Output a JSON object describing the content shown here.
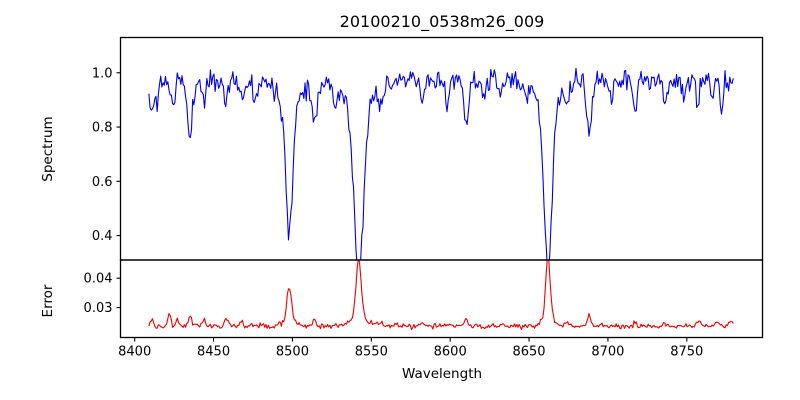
{
  "figure": {
    "title": "20100210_0538m26_009",
    "xlabel": "Wavelength",
    "background": "#ffffff",
    "spine_color": "#000000",
    "tick_color": "#000000"
  },
  "xticks": [
    {
      "v": 8400,
      "label": "8400"
    },
    {
      "v": 8450,
      "label": "8450"
    },
    {
      "v": 8500,
      "label": "8500"
    },
    {
      "v": 8550,
      "label": "8550"
    },
    {
      "v": 8600,
      "label": "8600"
    },
    {
      "v": 8650,
      "label": "8650"
    },
    {
      "v": 8700,
      "label": "8700"
    },
    {
      "v": 8750,
      "label": "8750"
    }
  ],
  "chart_data": [
    {
      "type": "line",
      "name": "spectrum",
      "ylabel": "Spectrum",
      "line_color": "#0000ee",
      "xlim": [
        8391,
        8798
      ],
      "ylim": [
        0.31,
        1.13
      ],
      "yticks": [
        {
          "v": 0.4,
          "label": "0.4"
        },
        {
          "v": 0.6,
          "label": "0.6"
        },
        {
          "v": 0.8,
          "label": "0.8"
        },
        {
          "v": 1.0,
          "label": "1.0"
        }
      ],
      "x_start": 8409,
      "x_end": 8780,
      "dx": 0.75,
      "model": {
        "base": 0.97,
        "noise_sigma": 0.019,
        "seed": 11,
        "features": [
          {
            "c": 8410.5,
            "v": 0.85,
            "w": 1.2
          },
          {
            "c": 8414,
            "v": 0.88,
            "w": 1.0
          },
          {
            "c": 8424,
            "v": 0.875,
            "w": 1.2
          },
          {
            "c": 8435,
            "v": 0.76,
            "w": 1.6
          },
          {
            "c": 8444,
            "v": 0.895,
            "w": 1.0
          },
          {
            "c": 8458,
            "v": 0.9,
            "w": 1.2
          },
          {
            "c": 8468,
            "v": 0.895,
            "w": 1.2
          },
          {
            "c": 8476,
            "v": 0.91,
            "w": 1.0
          },
          {
            "c": 8498,
            "v": 0.5,
            "w": 2.2
          },
          {
            "c": 8498,
            "v": 0.885,
            "w": 6.0
          },
          {
            "c": 8514,
            "v": 0.82,
            "w": 1.6
          },
          {
            "c": 8527,
            "v": 0.91,
            "w": 1.2
          },
          {
            "c": 8542,
            "v": 0.35,
            "w": 3.0
          },
          {
            "c": 8542,
            "v": 0.875,
            "w": 9.0
          },
          {
            "c": 8556,
            "v": 0.93,
            "w": 1.5
          },
          {
            "c": 8582,
            "v": 0.89,
            "w": 1.3
          },
          {
            "c": 8598,
            "v": 0.905,
            "w": 1.2
          },
          {
            "c": 8610,
            "v": 0.83,
            "w": 1.6
          },
          {
            "c": 8621,
            "v": 0.9,
            "w": 1.0
          },
          {
            "c": 8632,
            "v": 0.92,
            "w": 1.0
          },
          {
            "c": 8648,
            "v": 0.915,
            "w": 1.2
          },
          {
            "c": 8662,
            "v": 0.36,
            "w": 2.6
          },
          {
            "c": 8662,
            "v": 0.89,
            "w": 7.0
          },
          {
            "c": 8674,
            "v": 0.88,
            "w": 1.3
          },
          {
            "c": 8688,
            "v": 0.78,
            "w": 1.6
          },
          {
            "c": 8702,
            "v": 0.91,
            "w": 1.0
          },
          {
            "c": 8717,
            "v": 0.875,
            "w": 1.3
          },
          {
            "c": 8736,
            "v": 0.89,
            "w": 1.2
          },
          {
            "c": 8748,
            "v": 0.91,
            "w": 1.0
          },
          {
            "c": 8757,
            "v": 0.885,
            "w": 1.1
          },
          {
            "c": 8766,
            "v": 0.9,
            "w": 1.0
          },
          {
            "c": 8772,
            "v": 0.89,
            "w": 1.0
          }
        ]
      }
    },
    {
      "type": "line",
      "name": "error",
      "ylabel": "Error",
      "line_color": "#ee0000",
      "xlim": [
        8391,
        8798
      ],
      "ylim": [
        0.0198,
        0.0462
      ],
      "yticks": [
        {
          "v": 0.03,
          "label": "0.03"
        },
        {
          "v": 0.04,
          "label": "0.04"
        }
      ],
      "x_start": 8409,
      "x_end": 8780,
      "dx": 0.75,
      "model": {
        "base": 0.0237,
        "noise_sigma": 0.00045,
        "seed": 29,
        "features": [
          {
            "c": 8410.5,
            "v": 0.0262,
            "w": 1.0
          },
          {
            "c": 8422,
            "v": 0.028,
            "w": 0.9
          },
          {
            "c": 8427,
            "v": 0.0258,
            "w": 0.8
          },
          {
            "c": 8435,
            "v": 0.0272,
            "w": 1.1
          },
          {
            "c": 8444,
            "v": 0.0256,
            "w": 0.9
          },
          {
            "c": 8458,
            "v": 0.0266,
            "w": 1.0
          },
          {
            "c": 8468,
            "v": 0.0256,
            "w": 1.0
          },
          {
            "c": 8498,
            "v": 0.035,
            "w": 1.4
          },
          {
            "c": 8498,
            "v": 0.0258,
            "w": 4.0
          },
          {
            "c": 8514,
            "v": 0.0262,
            "w": 1.1
          },
          {
            "c": 8542,
            "v": 0.0432,
            "w": 1.6
          },
          {
            "c": 8542,
            "v": 0.0268,
            "w": 5.0
          },
          {
            "c": 8556,
            "v": 0.0246,
            "w": 2.0
          },
          {
            "c": 8582,
            "v": 0.0248,
            "w": 1.2
          },
          {
            "c": 8610,
            "v": 0.0262,
            "w": 1.0
          },
          {
            "c": 8632,
            "v": 0.0245,
            "w": 1.0
          },
          {
            "c": 8662,
            "v": 0.0455,
            "w": 1.4
          },
          {
            "c": 8662,
            "v": 0.026,
            "w": 4.0
          },
          {
            "c": 8674,
            "v": 0.025,
            "w": 1.0
          },
          {
            "c": 8688,
            "v": 0.0272,
            "w": 1.0
          },
          {
            "c": 8717,
            "v": 0.0248,
            "w": 1.0
          },
          {
            "c": 8736,
            "v": 0.0247,
            "w": 1.0
          },
          {
            "c": 8757,
            "v": 0.025,
            "w": 1.0
          },
          {
            "c": 8770,
            "v": 0.025,
            "w": 1.5
          },
          {
            "c": 8778,
            "v": 0.0254,
            "w": 1.2
          }
        ]
      }
    }
  ]
}
